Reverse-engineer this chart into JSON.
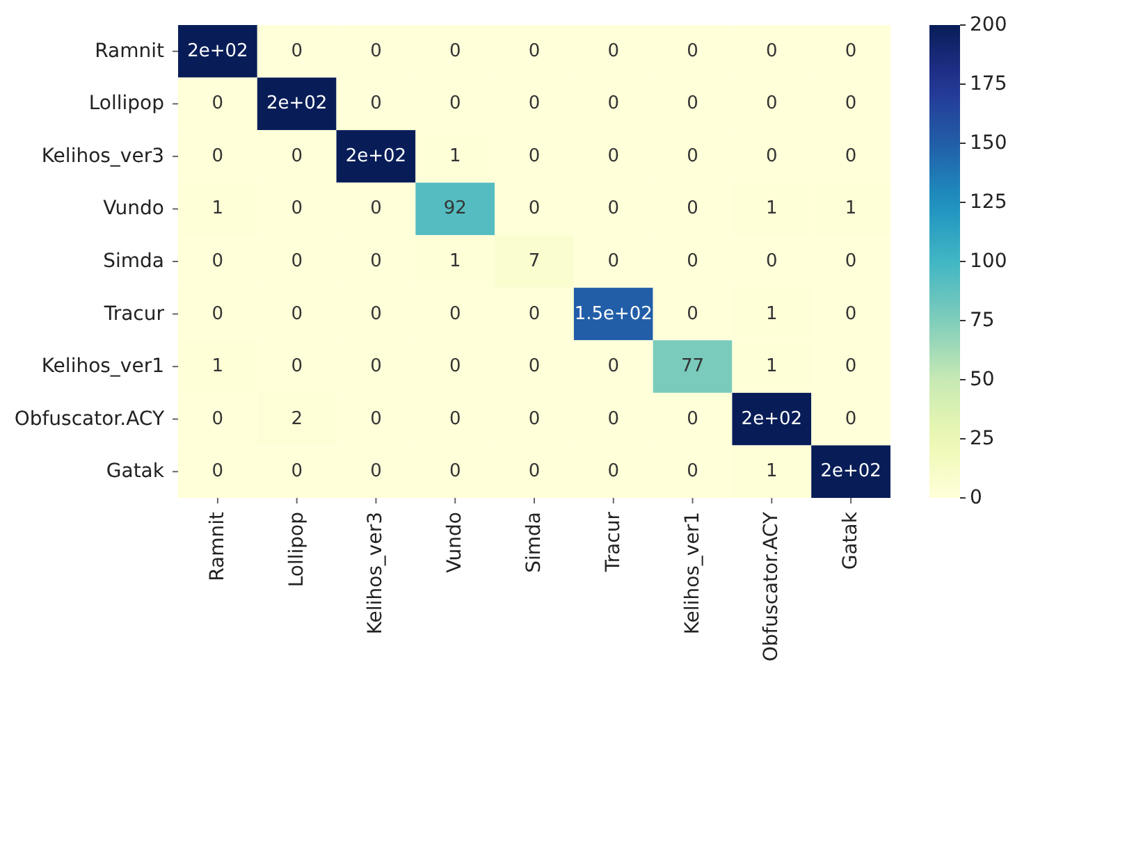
{
  "chart_data": {
    "type": "heatmap",
    "categories": [
      "Ramnit",
      "Lollipop",
      "Kelihos_ver3",
      "Vundo",
      "Simda",
      "Tracur",
      "Kelihos_ver1",
      "Obfuscator.ACY",
      "Gatak"
    ],
    "y_categories": [
      "Ramnit",
      "Lollipop",
      "Kelihos_ver3",
      "Vundo",
      "Simda",
      "Tracur",
      "Kelihos_ver1",
      "Obfuscator.ACY",
      "Gatak"
    ],
    "cells": [
      [
        200,
        0,
        0,
        0,
        0,
        0,
        0,
        0,
        0
      ],
      [
        0,
        200,
        0,
        0,
        0,
        0,
        0,
        0,
        0
      ],
      [
        0,
        0,
        200,
        1,
        0,
        0,
        0,
        0,
        0
      ],
      [
        1,
        0,
        0,
        92,
        0,
        0,
        0,
        1,
        1
      ],
      [
        0,
        0,
        0,
        1,
        7,
        0,
        0,
        0,
        0
      ],
      [
        0,
        0,
        0,
        0,
        0,
        150,
        0,
        1,
        0
      ],
      [
        1,
        0,
        0,
        0,
        0,
        0,
        77,
        1,
        0
      ],
      [
        0,
        2,
        0,
        0,
        0,
        0,
        0,
        200,
        0
      ],
      [
        0,
        0,
        0,
        0,
        0,
        0,
        0,
        1,
        200
      ]
    ],
    "cell_labels": [
      [
        "2e+02",
        "0",
        "0",
        "0",
        "0",
        "0",
        "0",
        "0",
        "0"
      ],
      [
        "0",
        "2e+02",
        "0",
        "0",
        "0",
        "0",
        "0",
        "0",
        "0"
      ],
      [
        "0",
        "0",
        "2e+02",
        "1",
        "0",
        "0",
        "0",
        "0",
        "0"
      ],
      [
        "1",
        "0",
        "0",
        "92",
        "0",
        "0",
        "0",
        "1",
        "1"
      ],
      [
        "0",
        "0",
        "0",
        "1",
        "7",
        "0",
        "0",
        "0",
        "0"
      ],
      [
        "0",
        "0",
        "0",
        "0",
        "0",
        "1.5e+02",
        "0",
        "1",
        "0"
      ],
      [
        "1",
        "0",
        "0",
        "0",
        "0",
        "0",
        "77",
        "1",
        "0"
      ],
      [
        "0",
        "2",
        "0",
        "0",
        "0",
        "0",
        "0",
        "2e+02",
        "0"
      ],
      [
        "0",
        "0",
        "0",
        "0",
        "0",
        "0",
        "0",
        "1",
        "2e+02"
      ]
    ],
    "clim": [
      0,
      200
    ],
    "cticks": [
      0,
      25,
      50,
      75,
      100,
      125,
      150,
      175,
      200
    ]
  }
}
